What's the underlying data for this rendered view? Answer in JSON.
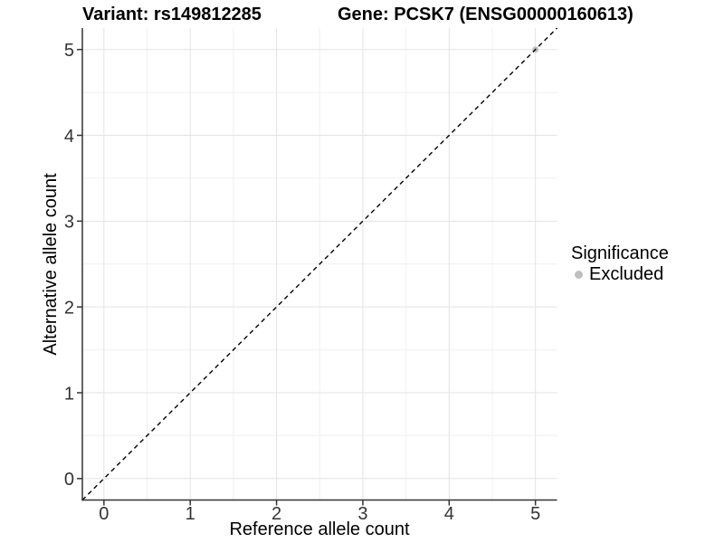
{
  "header": {
    "variant_label": "Variant: rs149812285",
    "gene_label": "Gene: PCSK7 (ENSG00000160613)"
  },
  "chart_data": {
    "type": "scatter",
    "xlabel": "Reference allele count",
    "ylabel": "Alternative allele count",
    "xlim": [
      -0.25,
      5.25
    ],
    "ylim": [
      -0.25,
      5.25
    ],
    "x_ticks": [
      0,
      1,
      2,
      3,
      4,
      5
    ],
    "y_ticks": [
      0,
      1,
      2,
      3,
      4,
      5
    ],
    "grid": "major+minor",
    "reference_line": {
      "equation": "y = x",
      "style": "dashed",
      "color": "#000000"
    },
    "series": [
      {
        "name": "Excluded",
        "color": "#bfbfbf",
        "points": [
          {
            "x": 5,
            "y": 5
          }
        ]
      }
    ],
    "legend": {
      "position": "right",
      "title": "Significance",
      "items": [
        {
          "label": "Excluded",
          "color": "#bfbfbf"
        }
      ]
    },
    "style": {
      "panel_background": "#ffffff",
      "grid_major_color": "#e3e3e3",
      "grid_minor_color": "#f0f0f0",
      "axis_color": "#333333",
      "tick_label_color": "#333333",
      "title_color": "#000000"
    }
  }
}
